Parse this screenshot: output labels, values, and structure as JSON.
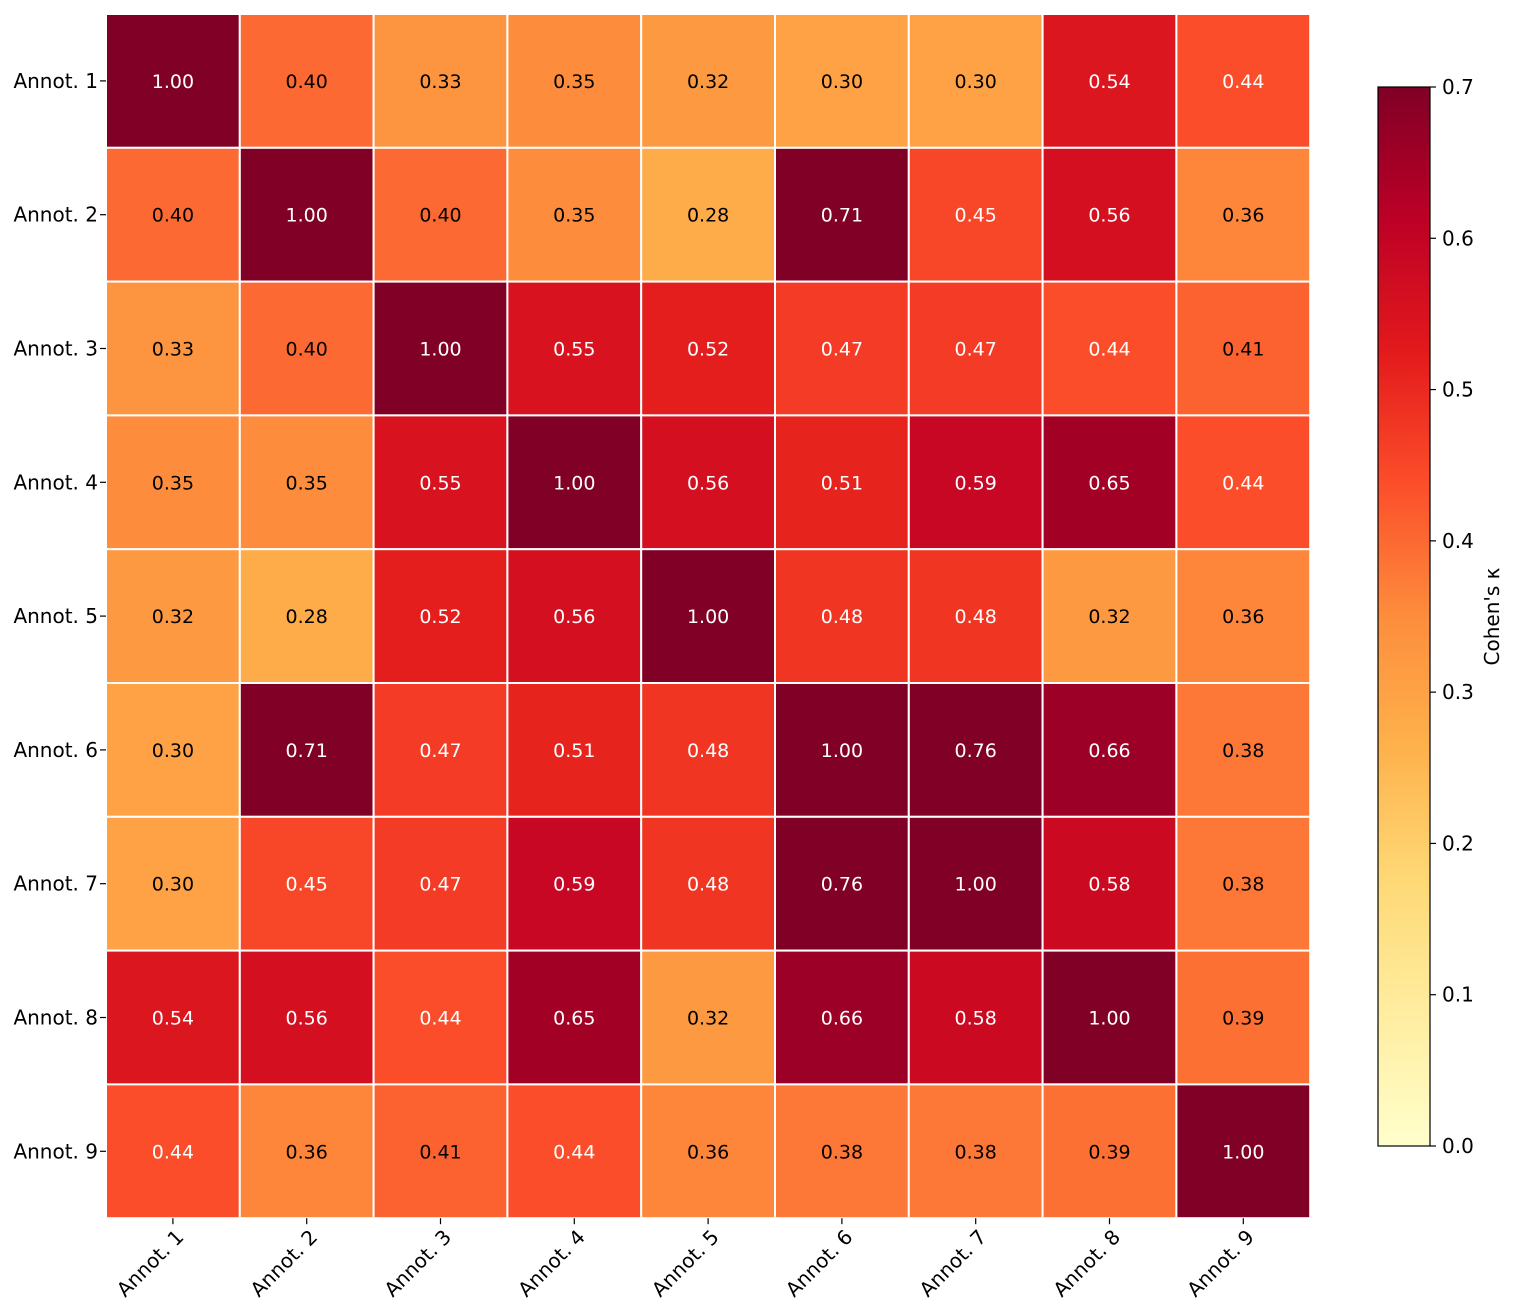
{
  "chart_data": {
    "type": "heatmap",
    "title": "",
    "xlabel": "",
    "ylabel": "",
    "rows": [
      "Annot. 1",
      "Annot. 2",
      "Annot. 3",
      "Annot. 4",
      "Annot. 5",
      "Annot. 6",
      "Annot. 7",
      "Annot. 8",
      "Annot. 9"
    ],
    "columns": [
      "Annot. 1",
      "Annot. 2",
      "Annot. 3",
      "Annot. 4",
      "Annot. 5",
      "Annot. 6",
      "Annot. 7",
      "Annot. 8",
      "Annot. 9"
    ],
    "values": [
      [
        1.0,
        0.4,
        0.33,
        0.35,
        0.32,
        0.3,
        0.3,
        0.54,
        0.44
      ],
      [
        0.4,
        1.0,
        0.4,
        0.35,
        0.28,
        0.71,
        0.45,
        0.56,
        0.36
      ],
      [
        0.33,
        0.4,
        1.0,
        0.55,
        0.52,
        0.47,
        0.47,
        0.44,
        0.41
      ],
      [
        0.35,
        0.35,
        0.55,
        1.0,
        0.56,
        0.51,
        0.59,
        0.65,
        0.44
      ],
      [
        0.32,
        0.28,
        0.52,
        0.56,
        1.0,
        0.48,
        0.48,
        0.32,
        0.36
      ],
      [
        0.3,
        0.71,
        0.47,
        0.51,
        0.48,
        1.0,
        0.76,
        0.66,
        0.38
      ],
      [
        0.3,
        0.45,
        0.47,
        0.59,
        0.48,
        0.76,
        1.0,
        0.58,
        0.38
      ],
      [
        0.54,
        0.56,
        0.44,
        0.65,
        0.32,
        0.66,
        0.58,
        1.0,
        0.39
      ],
      [
        0.44,
        0.36,
        0.41,
        0.44,
        0.36,
        0.38,
        0.38,
        0.39,
        1.0
      ]
    ],
    "value_format": "0.00",
    "colorbar": {
      "label": "Cohen's κ",
      "vmin": 0.0,
      "vmax": 0.7,
      "ticks": [
        0.0,
        0.1,
        0.2,
        0.3,
        0.4,
        0.5,
        0.6,
        0.7
      ],
      "tick_labels": [
        "0.0",
        "0.1",
        "0.2",
        "0.3",
        "0.4",
        "0.5",
        "0.6",
        "0.7"
      ],
      "colormap": "YlOrRd",
      "colormap_stops": [
        "#ffffcc",
        "#ffeda0",
        "#fed976",
        "#feb24c",
        "#fd8d3c",
        "#fc4e2a",
        "#e31a1c",
        "#bd0026",
        "#800026"
      ]
    },
    "cell_border_color": "#ffffff",
    "text_color_dark": "#000000",
    "text_color_light": "#ffffff",
    "grid": false,
    "legend": "colorbar-right"
  }
}
